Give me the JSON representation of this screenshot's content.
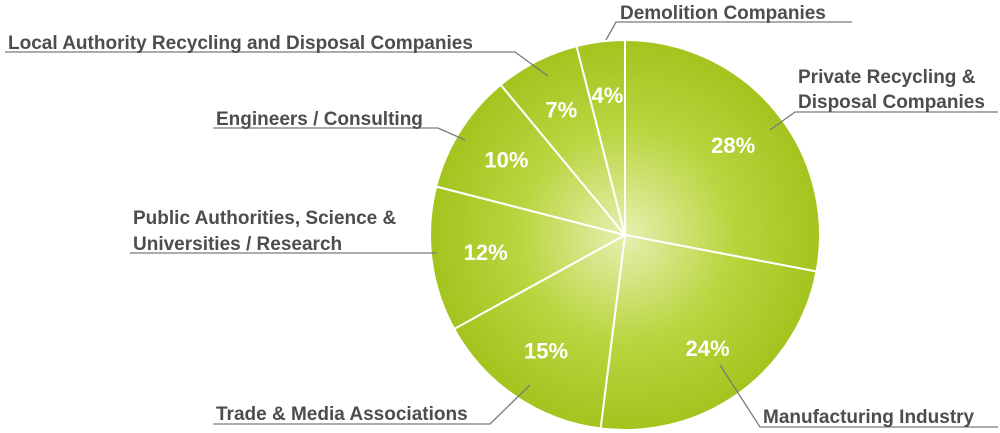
{
  "chart_data": {
    "type": "pie",
    "title": "",
    "start": "12 o'clock, clockwise",
    "slices": [
      {
        "label": "Private Recycling & Disposal Companies",
        "value": 28,
        "value_label": "28%"
      },
      {
        "label": "Manufacturing Industry",
        "value": 24,
        "value_label": "24%"
      },
      {
        "label": "Trade & Media Associations",
        "value": 15,
        "value_label": "15%"
      },
      {
        "label": "Public Authorities, Science & Universities / Research",
        "value": 12,
        "value_label": "12%"
      },
      {
        "label": "Engineers / Consulting",
        "value": 10,
        "value_label": "10%"
      },
      {
        "label": "Local Authority Recycling and Disposal Companies",
        "value": 7,
        "value_label": "7%"
      },
      {
        "label": "Demolition Companies",
        "value": 4,
        "value_label": "4%"
      }
    ],
    "colors": {
      "slice_center": "#e6f0b0",
      "slice_edge": "#a3c41e",
      "separator": "#ffffff",
      "label_text": "#4d4d4d",
      "leader_line": "#7a7a7a"
    }
  },
  "labels": {
    "private_line1": "Private Recycling &",
    "private_line2": "Disposal Companies",
    "manufacturing": "Manufacturing Industry",
    "trade": "Trade & Media Associations",
    "public_line1": "Public Authorities, Science &",
    "public_line2": "Universities / Research",
    "engineers": "Engineers / Consulting",
    "local": "Local Authority Recycling and Disposal Companies",
    "demolition": "Demolition Companies"
  }
}
